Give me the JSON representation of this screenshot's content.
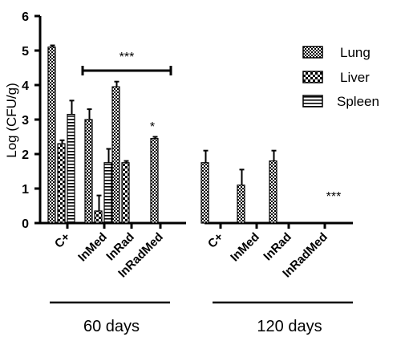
{
  "chart_data": {
    "type": "bar",
    "ylabel": "Log (CFU/g)",
    "ylim": [
      0,
      6
    ],
    "yticks": [
      "0",
      "1",
      "2",
      "3",
      "4",
      "5",
      "6"
    ],
    "groups": [
      {
        "label": "60 days",
        "categories": [
          "C+",
          "InMed",
          "InRad",
          "InRadMed"
        ],
        "series": [
          {
            "name": "Lung",
            "values": [
              5.1,
              3.0,
              3.95,
              2.45
            ],
            "errors": [
              0.05,
              0.3,
              0.15,
              0.05
            ]
          },
          {
            "name": "Liver",
            "values": [
              2.3,
              0.35,
              1.75,
              null
            ],
            "errors": [
              0.1,
              0.45,
              0.05,
              null
            ]
          },
          {
            "name": "Spleen",
            "values": [
              3.15,
              1.75,
              null,
              null
            ],
            "errors": [
              0.4,
              0.4,
              null,
              null
            ]
          }
        ]
      },
      {
        "label": "120 days",
        "categories": [
          "C+",
          "InMed",
          "InRad",
          "InRadMed"
        ],
        "series": [
          {
            "name": "Lung",
            "values": [
              1.75,
              1.1,
              1.8,
              null
            ],
            "errors": [
              0.35,
              0.45,
              0.3,
              null
            ]
          },
          {
            "name": "Liver",
            "values": [
              null,
              null,
              null,
              null
            ],
            "errors": [
              null,
              null,
              null,
              null
            ]
          },
          {
            "name": "Spleen",
            "values": [
              null,
              null,
              null,
              null
            ],
            "errors": [
              null,
              null,
              null,
              null
            ]
          }
        ]
      }
    ],
    "legend": [
      "Lung",
      "Liver",
      "Spleen"
    ],
    "legend_position": "top-right",
    "annotations": {
      "bracket_label": "***",
      "single_star": "*",
      "right_stars": "***"
    },
    "colors": {
      "bar_fill": "#ffffff",
      "ink": "#000000"
    }
  }
}
